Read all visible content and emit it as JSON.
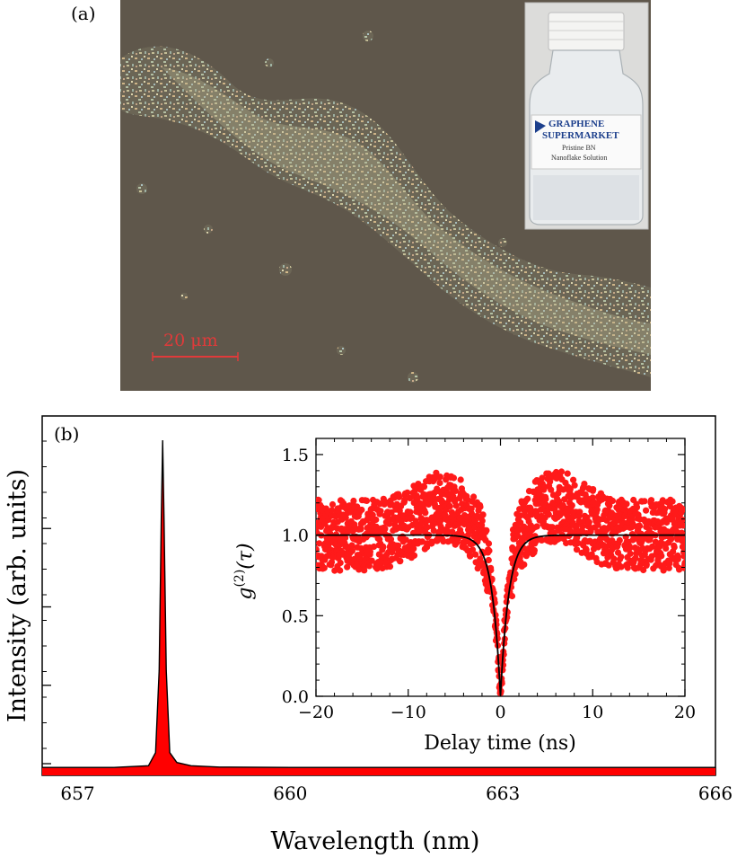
{
  "panel_a": {
    "label": "(a)",
    "scale_bar_label": "20 μm",
    "inset_photo": {
      "brand_line1": "GRAPHENE",
      "brand_line2": "SUPERMARKET",
      "product_line1": "Pristine BN",
      "product_line2": "Nanoflake Solution"
    },
    "colors": {
      "background": "#5f574b",
      "flakes": "#b8b48f",
      "scale_bar": "#e03a3a"
    }
  },
  "chart_data": [
    {
      "id": "main-spectrum",
      "type": "area",
      "panel_label": "(b)",
      "xlabel": "Wavelength (nm)",
      "ylabel": "Intensity (arb. units)",
      "xlim": [
        656.5,
        666
      ],
      "x_ticks": [
        657,
        660,
        663,
        666
      ],
      "y_tick_labels_shown": false,
      "series": [
        {
          "x": [
            656.5,
            657.5,
            658.0,
            658.1,
            658.15,
            658.18,
            658.2,
            658.22,
            658.25,
            658.3,
            658.4,
            658.6,
            659.0,
            660,
            661,
            662,
            663,
            664,
            665,
            666
          ],
          "y": [
            0.005,
            0.005,
            0.01,
            0.05,
            0.3,
            0.75,
            1.0,
            0.75,
            0.3,
            0.05,
            0.02,
            0.01,
            0.006,
            0.005,
            0.005,
            0.005,
            0.005,
            0.005,
            0.005,
            0.005
          ]
        }
      ],
      "colors": {
        "fill": "#ff0000",
        "line": "#000000"
      }
    },
    {
      "id": "inset-g2",
      "type": "scatter",
      "xlabel": "Delay time (ns)",
      "ylabel": "g(2)(τ)",
      "ylabel_parts": {
        "g": "g",
        "sup": "(2)",
        "arg": "(τ)"
      },
      "xlim": [
        -20,
        20
      ],
      "ylim": [
        0,
        1.6
      ],
      "x_ticks": [
        -20,
        -10,
        0,
        10,
        20
      ],
      "x_tick_labels": [
        "−20",
        "−10",
        "0",
        "10",
        "20"
      ],
      "y_ticks": [
        0.0,
        0.5,
        1.0,
        1.5
      ],
      "y_tick_labels": [
        "0.0",
        "0.5",
        "1.0",
        "1.5"
      ],
      "fit": {
        "baseline": 1.0,
        "min": 0.0,
        "width_ns": 0.9
      },
      "scatter_model": {
        "points": 1600,
        "center_mean": 1.0,
        "spread": 0.22,
        "peak_max": 1.5
      },
      "colors": {
        "points": "#ff1a1a",
        "fit": "#000000"
      }
    }
  ]
}
